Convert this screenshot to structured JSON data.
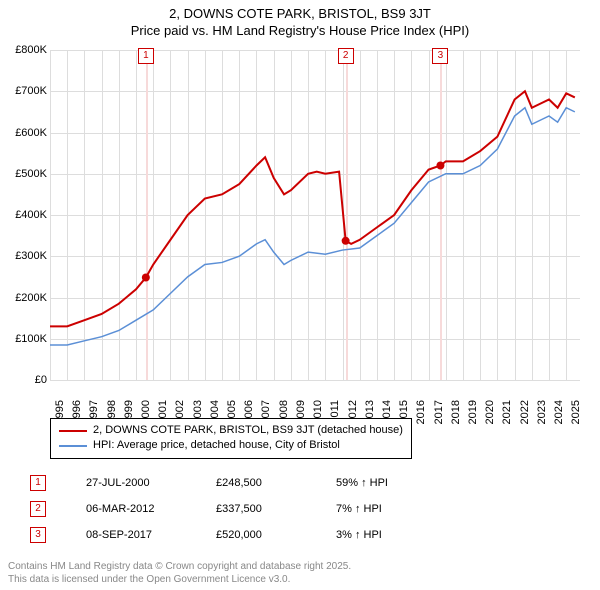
{
  "title_line1": "2, DOWNS COTE PARK, BRISTOL, BS9 3JT",
  "title_line2": "Price paid vs. HM Land Registry's House Price Index (HPI)",
  "chart": {
    "type": "line",
    "background_color": "#ffffff",
    "grid_color": "#dddddd",
    "ylim": [
      0,
      800000
    ],
    "ytick_step": 100000,
    "ytick_labels": [
      "£0",
      "£100K",
      "£200K",
      "£300K",
      "£400K",
      "£500K",
      "£600K",
      "£700K",
      "£800K"
    ],
    "xlim": [
      1995,
      2025.8
    ],
    "xtick_step": 1,
    "xtick_labels": [
      "1995",
      "1996",
      "1997",
      "1998",
      "1999",
      "2000",
      "2001",
      "2002",
      "2003",
      "2004",
      "2005",
      "2006",
      "2007",
      "2008",
      "2009",
      "2010",
      "2011",
      "2012",
      "2013",
      "2014",
      "2015",
      "2016",
      "2017",
      "2018",
      "2019",
      "2020",
      "2021",
      "2022",
      "2023",
      "2024",
      "2025"
    ],
    "event_line_color": "#f7dada",
    "event_box_border": "#cc0000",
    "event_box_text": "#cc0000",
    "series": [
      {
        "name": "price_paid",
        "label": "2, DOWNS COTE PARK, BRISTOL, BS9 3JT (detached house)",
        "color": "#cc0000",
        "line_width": 2,
        "data": [
          [
            1995,
            130000
          ],
          [
            1996,
            130000
          ],
          [
            1997,
            145000
          ],
          [
            1998,
            160000
          ],
          [
            1999,
            185000
          ],
          [
            2000,
            220000
          ],
          [
            2000.57,
            248500
          ],
          [
            2001,
            280000
          ],
          [
            2002,
            340000
          ],
          [
            2003,
            400000
          ],
          [
            2004,
            440000
          ],
          [
            2005,
            450000
          ],
          [
            2006,
            475000
          ],
          [
            2007,
            520000
          ],
          [
            2007.5,
            540000
          ],
          [
            2008,
            490000
          ],
          [
            2008.6,
            450000
          ],
          [
            2009,
            460000
          ],
          [
            2010,
            500000
          ],
          [
            2010.5,
            505000
          ],
          [
            2011,
            500000
          ],
          [
            2011.8,
            505000
          ],
          [
            2012.18,
            337500
          ],
          [
            2012.5,
            330000
          ],
          [
            2013,
            340000
          ],
          [
            2014,
            370000
          ],
          [
            2015,
            400000
          ],
          [
            2016,
            460000
          ],
          [
            2017,
            510000
          ],
          [
            2017.69,
            520000
          ],
          [
            2018,
            530000
          ],
          [
            2019,
            530000
          ],
          [
            2020,
            555000
          ],
          [
            2021,
            590000
          ],
          [
            2022,
            680000
          ],
          [
            2022.6,
            700000
          ],
          [
            2023,
            660000
          ],
          [
            2023.5,
            670000
          ],
          [
            2024,
            680000
          ],
          [
            2024.5,
            660000
          ],
          [
            2025,
            695000
          ],
          [
            2025.5,
            685000
          ]
        ],
        "markers": [
          {
            "x": 2000.57,
            "y": 248500
          },
          {
            "x": 2012.18,
            "y": 337500
          },
          {
            "x": 2017.69,
            "y": 520000
          }
        ]
      },
      {
        "name": "hpi",
        "label": "HPI: Average price, detached house, City of Bristol",
        "color": "#5b8fd6",
        "line_width": 1.5,
        "data": [
          [
            1995,
            85000
          ],
          [
            1996,
            85000
          ],
          [
            1997,
            95000
          ],
          [
            1998,
            105000
          ],
          [
            1999,
            120000
          ],
          [
            2000,
            145000
          ],
          [
            2001,
            170000
          ],
          [
            2002,
            210000
          ],
          [
            2003,
            250000
          ],
          [
            2004,
            280000
          ],
          [
            2005,
            285000
          ],
          [
            2006,
            300000
          ],
          [
            2007,
            330000
          ],
          [
            2007.5,
            340000
          ],
          [
            2008,
            310000
          ],
          [
            2008.6,
            280000
          ],
          [
            2009,
            290000
          ],
          [
            2010,
            310000
          ],
          [
            2011,
            305000
          ],
          [
            2012,
            315000
          ],
          [
            2013,
            320000
          ],
          [
            2014,
            350000
          ],
          [
            2015,
            380000
          ],
          [
            2016,
            430000
          ],
          [
            2017,
            480000
          ],
          [
            2018,
            500000
          ],
          [
            2019,
            500000
          ],
          [
            2020,
            520000
          ],
          [
            2021,
            560000
          ],
          [
            2022,
            640000
          ],
          [
            2022.6,
            660000
          ],
          [
            2023,
            620000
          ],
          [
            2023.5,
            630000
          ],
          [
            2024,
            640000
          ],
          [
            2024.5,
            625000
          ],
          [
            2025,
            660000
          ],
          [
            2025.5,
            650000
          ]
        ]
      }
    ],
    "events": [
      {
        "idx": "1",
        "x": 2000.57
      },
      {
        "idx": "2",
        "x": 2012.18
      },
      {
        "idx": "3",
        "x": 2017.69
      }
    ]
  },
  "legend": {
    "rows": [
      {
        "color": "#cc0000",
        "width": 2,
        "text": "2, DOWNS COTE PARK, BRISTOL, BS9 3JT (detached house)"
      },
      {
        "color": "#5b8fd6",
        "width": 1.5,
        "text": "HPI: Average price, detached house, City of Bristol"
      }
    ]
  },
  "event_table": [
    {
      "idx": "1",
      "date": "27-JUL-2000",
      "price": "£248,500",
      "hpi": "59% ↑ HPI"
    },
    {
      "idx": "2",
      "date": "06-MAR-2012",
      "price": "£337,500",
      "hpi": "7% ↑ HPI"
    },
    {
      "idx": "3",
      "date": "08-SEP-2017",
      "price": "£520,000",
      "hpi": "3% ↑ HPI"
    }
  ],
  "footer_line1": "Contains HM Land Registry data © Crown copyright and database right 2025.",
  "footer_line2": "This data is licensed under the Open Government Licence v3.0."
}
